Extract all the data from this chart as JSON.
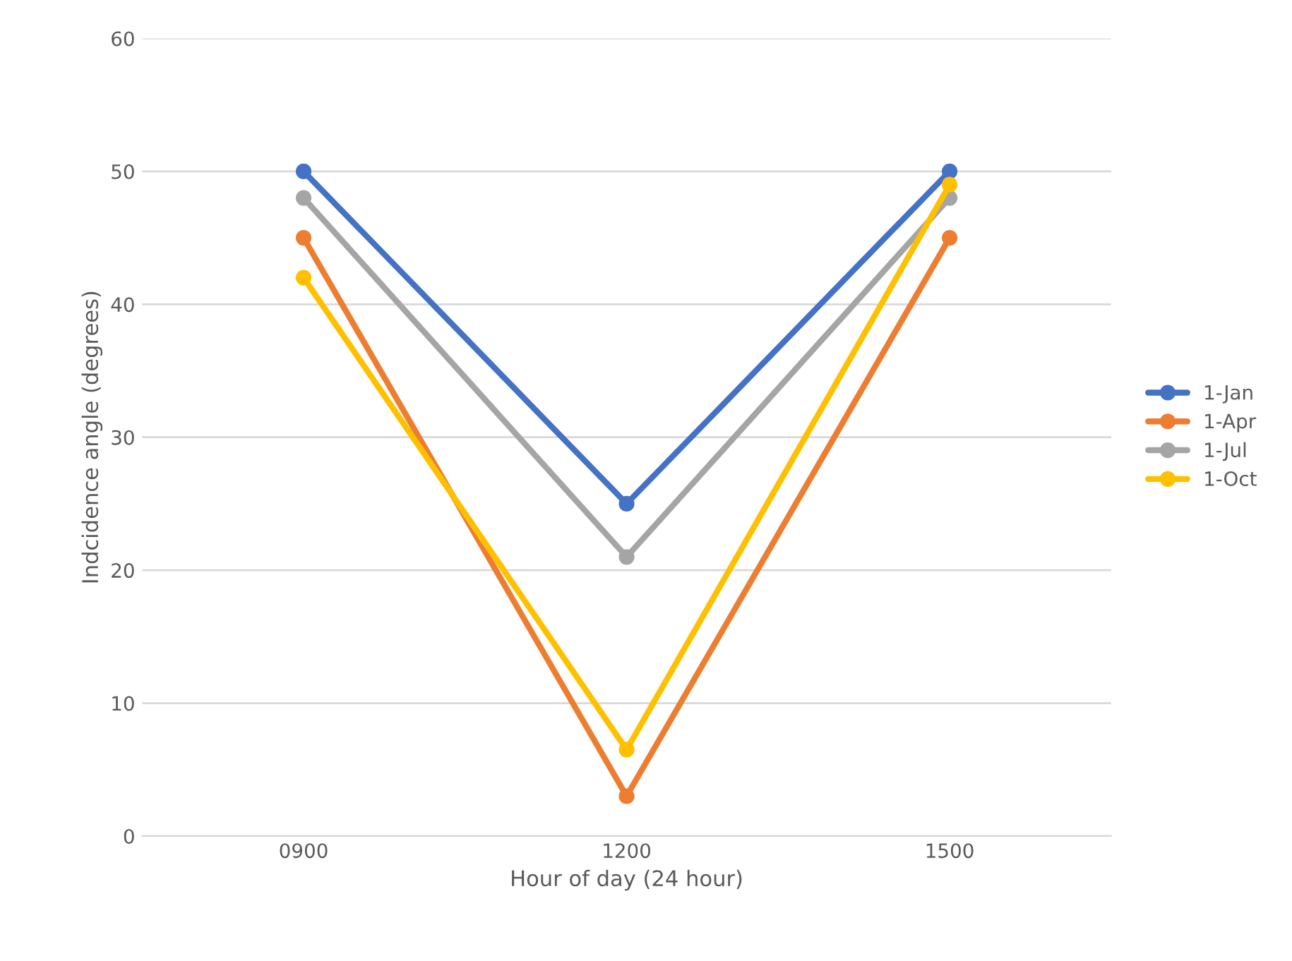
{
  "chart_data": {
    "type": "line",
    "xlabel": "Hour of day (24 hour)",
    "ylabel": "Indcidence angle (degrees)",
    "categories": [
      "0900",
      "1200",
      "1500"
    ],
    "series": [
      {
        "name": "1-Jan",
        "color": "#4472c4",
        "values": [
          50,
          25,
          50
        ]
      },
      {
        "name": "1-Apr",
        "color": "#ed7d31",
        "values": [
          45,
          3,
          45
        ]
      },
      {
        "name": "1-Jul",
        "color": "#a5a5a5",
        "values": [
          48,
          21,
          48
        ]
      },
      {
        "name": "1-Oct",
        "color": "#ffc000",
        "values": [
          42,
          6.5,
          49
        ]
      }
    ],
    "ylim": [
      0,
      60
    ],
    "yticks": [
      0,
      10,
      20,
      30,
      40,
      50,
      60
    ],
    "grid": "y",
    "legend": "right",
    "marker": "circle",
    "line_style": "solid"
  }
}
